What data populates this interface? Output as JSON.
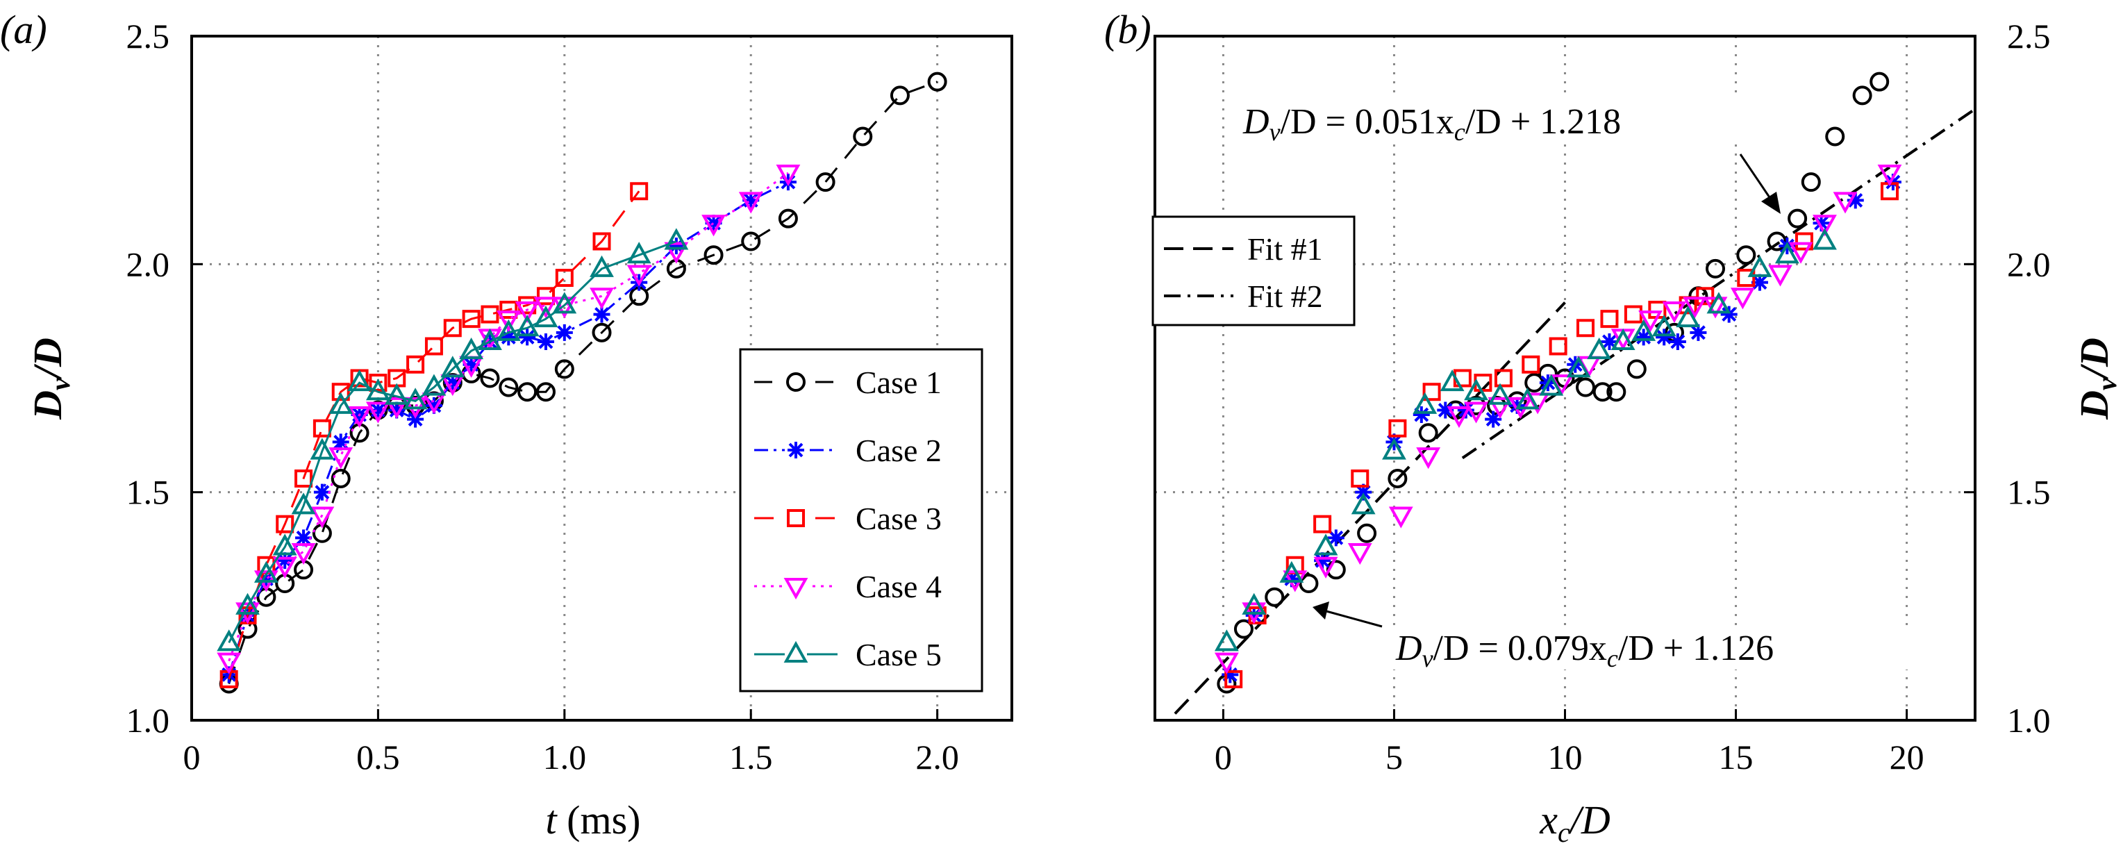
{
  "chart_data": [
    {
      "type": "line",
      "panel_label": "(a)",
      "xlabel": {
        "var": "t",
        "unit": " (ms)"
      },
      "ylabel": {
        "main": "D",
        "sub": "v",
        "rest": "/D"
      },
      "xlim": [
        0,
        2.2
      ],
      "ylim": [
        1.0,
        2.5
      ],
      "xticks": [
        0,
        0.5,
        1.0,
        1.5,
        2.0
      ],
      "xtick_labels": [
        "0",
        "0.5",
        "1.0",
        "1.5",
        "2.0"
      ],
      "yticks": [
        1.0,
        1.5,
        2.0,
        2.5
      ],
      "ytick_labels": [
        "1.0",
        "1.5",
        "2.0",
        "2.5"
      ],
      "grid": true,
      "legend_position": "lower-right",
      "series": [
        {
          "name": "Case 1",
          "color": "#000000",
          "marker": "circle",
          "dash": "26 18",
          "x": [
            0.1,
            0.15,
            0.2,
            0.25,
            0.3,
            0.35,
            0.4,
            0.45,
            0.5,
            0.55,
            0.6,
            0.65,
            0.7,
            0.75,
            0.8,
            0.85,
            0.9,
            0.95,
            1.0,
            1.1,
            1.2,
            1.3,
            1.4,
            1.5,
            1.6,
            1.7,
            1.8,
            1.9,
            2.0
          ],
          "y": [
            1.08,
            1.2,
            1.27,
            1.3,
            1.33,
            1.41,
            1.53,
            1.63,
            1.68,
            1.69,
            1.69,
            1.7,
            1.74,
            1.76,
            1.75,
            1.73,
            1.72,
            1.72,
            1.77,
            1.85,
            1.93,
            1.99,
            2.02,
            2.05,
            2.1,
            2.18,
            2.28,
            2.37,
            2.4
          ]
        },
        {
          "name": "Case 2",
          "color": "#0000ff",
          "marker": "star",
          "dash": "20 8 4 8",
          "x": [
            0.1,
            0.15,
            0.2,
            0.25,
            0.3,
            0.35,
            0.4,
            0.45,
            0.5,
            0.55,
            0.6,
            0.65,
            0.7,
            0.75,
            0.8,
            0.85,
            0.9,
            0.95,
            1.0,
            1.1,
            1.2,
            1.3,
            1.4,
            1.5,
            1.6
          ],
          "y": [
            1.1,
            1.23,
            1.31,
            1.35,
            1.4,
            1.5,
            1.61,
            1.67,
            1.68,
            1.68,
            1.66,
            1.69,
            1.74,
            1.78,
            1.83,
            1.84,
            1.84,
            1.83,
            1.85,
            1.89,
            1.96,
            2.04,
            2.09,
            2.14,
            2.18
          ]
        },
        {
          "name": "Case 3",
          "color": "#ff0000",
          "marker": "square",
          "dash": "28 16",
          "x": [
            0.1,
            0.15,
            0.2,
            0.25,
            0.3,
            0.35,
            0.4,
            0.45,
            0.5,
            0.55,
            0.6,
            0.65,
            0.7,
            0.75,
            0.8,
            0.85,
            0.9,
            0.95,
            1.0,
            1.1,
            1.2
          ],
          "y": [
            1.09,
            1.23,
            1.34,
            1.43,
            1.53,
            1.64,
            1.72,
            1.75,
            1.74,
            1.75,
            1.78,
            1.82,
            1.86,
            1.88,
            1.89,
            1.9,
            1.91,
            1.93,
            1.97,
            2.05,
            2.16
          ]
        },
        {
          "name": "Case 4",
          "color": "#ff00ff",
          "marker": "triangle-down",
          "dash": "4 8",
          "x": [
            0.1,
            0.15,
            0.2,
            0.25,
            0.3,
            0.35,
            0.4,
            0.45,
            0.5,
            0.55,
            0.6,
            0.65,
            0.7,
            0.75,
            0.8,
            0.85,
            0.9,
            0.95,
            1.0,
            1.1,
            1.2,
            1.3,
            1.4,
            1.5,
            1.6
          ],
          "y": [
            1.13,
            1.24,
            1.31,
            1.34,
            1.37,
            1.45,
            1.58,
            1.67,
            1.68,
            1.69,
            1.69,
            1.7,
            1.74,
            1.78,
            1.84,
            1.88,
            1.9,
            1.91,
            1.91,
            1.93,
            1.98,
            2.03,
            2.09,
            2.14,
            2.2
          ]
        },
        {
          "name": "Case 5",
          "color": "#008080",
          "marker": "triangle-up",
          "dash": "",
          "x": [
            0.1,
            0.15,
            0.2,
            0.25,
            0.3,
            0.35,
            0.4,
            0.45,
            0.5,
            0.55,
            0.6,
            0.65,
            0.7,
            0.75,
            0.8,
            0.85,
            0.9,
            0.95,
            1.0,
            1.1,
            1.2,
            1.3
          ],
          "y": [
            1.17,
            1.25,
            1.32,
            1.38,
            1.47,
            1.59,
            1.69,
            1.74,
            1.72,
            1.71,
            1.7,
            1.73,
            1.77,
            1.81,
            1.83,
            1.85,
            1.86,
            1.88,
            1.91,
            1.99,
            2.02,
            2.05
          ]
        }
      ]
    },
    {
      "type": "scatter",
      "panel_label": "(b)",
      "xlabel": {
        "main": "x",
        "sub": "c",
        "rest": "/D"
      },
      "ylabel": {
        "main": "D",
        "sub": "v",
        "rest": "/D"
      },
      "xlim": [
        -2,
        22
      ],
      "ylim": [
        1.0,
        2.5
      ],
      "xticks": [
        0,
        5,
        10,
        15,
        20
      ],
      "xtick_labels": [
        "0",
        "5",
        "10",
        "15",
        "20"
      ],
      "yticks": [
        1.0,
        1.5,
        2.0,
        2.5
      ],
      "ytick_labels": [
        "1.0",
        "1.5",
        "2.0",
        "2.5"
      ],
      "grid": true,
      "legend_position": "upper-left",
      "fits": [
        {
          "name": "Fit #1",
          "slope": 0.079,
          "intercept": 1.126,
          "x_range": [
            -2,
            10
          ],
          "dash": "28 14",
          "equation": {
            "a": "D",
            "b": "v",
            "c": "/D = 0.079x",
            "d": "c",
            "e": "/D + 1.126"
          }
        },
        {
          "name": "Fit #2",
          "slope": 0.051,
          "intercept": 1.218,
          "x_range": [
            7,
            22
          ],
          "dash": "24 10 4 10",
          "equation": {
            "a": "D",
            "b": "v",
            "c": "/D = 0.051x",
            "d": "c",
            "e": "/D + 1.218"
          }
        }
      ],
      "series": [
        {
          "name": "Case 1",
          "color": "#000000",
          "marker": "circle",
          "x": [
            0.1,
            0.6,
            1.5,
            2.5,
            3.3,
            4.2,
            5.1,
            6.0,
            6.8,
            7.4,
            8.0,
            8.6,
            9.1,
            9.5,
            10.0,
            10.6,
            11.1,
            11.5,
            12.1,
            13.2,
            13.9,
            14.4,
            15.3,
            16.2,
            16.8,
            17.2,
            17.9,
            18.7,
            19.2
          ],
          "y": [
            1.08,
            1.2,
            1.27,
            1.3,
            1.33,
            1.41,
            1.53,
            1.63,
            1.68,
            1.69,
            1.69,
            1.7,
            1.74,
            1.76,
            1.75,
            1.73,
            1.72,
            1.72,
            1.77,
            1.85,
            1.93,
            1.99,
            2.02,
            2.05,
            2.1,
            2.18,
            2.28,
            2.37,
            2.4
          ]
        },
        {
          "name": "Case 2",
          "color": "#0000ff",
          "marker": "star",
          "x": [
            0.2,
            0.9,
            2.0,
            2.9,
            3.3,
            4.1,
            5.0,
            5.8,
            6.5,
            7.1,
            7.9,
            8.6,
            9.5,
            10.3,
            11.3,
            12.3,
            12.9,
            13.3,
            13.9,
            14.8,
            15.7,
            16.5,
            17.5,
            18.5,
            19.6
          ],
          "y": [
            1.1,
            1.23,
            1.31,
            1.35,
            1.4,
            1.5,
            1.61,
            1.67,
            1.68,
            1.68,
            1.66,
            1.69,
            1.74,
            1.78,
            1.83,
            1.84,
            1.84,
            1.83,
            1.85,
            1.89,
            1.96,
            2.04,
            2.09,
            2.14,
            2.18
          ]
        },
        {
          "name": "Case 3",
          "color": "#ff0000",
          "marker": "square",
          "x": [
            0.3,
            1.0,
            2.1,
            2.9,
            4.0,
            5.1,
            6.1,
            7.0,
            7.6,
            8.2,
            9.0,
            9.8,
            10.6,
            11.3,
            12.0,
            12.7,
            13.6,
            14.1,
            15.3,
            17.0,
            19.5
          ],
          "y": [
            1.09,
            1.23,
            1.34,
            1.43,
            1.53,
            1.64,
            1.72,
            1.75,
            1.74,
            1.75,
            1.78,
            1.82,
            1.86,
            1.88,
            1.89,
            1.9,
            1.91,
            1.93,
            1.97,
            2.05,
            2.16
          ]
        },
        {
          "name": "Case 4",
          "color": "#ff00ff",
          "marker": "triangle-down",
          "x": [
            0.1,
            0.9,
            2.1,
            3.0,
            4.0,
            5.2,
            6.0,
            6.9,
            7.4,
            8.1,
            8.7,
            9.2,
            9.9,
            10.7,
            11.7,
            12.5,
            13.2,
            13.8,
            14.4,
            15.2,
            16.3,
            16.9,
            17.6,
            18.2,
            19.5
          ],
          "y": [
            1.13,
            1.24,
            1.31,
            1.34,
            1.37,
            1.45,
            1.58,
            1.67,
            1.68,
            1.69,
            1.69,
            1.7,
            1.74,
            1.78,
            1.84,
            1.88,
            1.9,
            1.91,
            1.91,
            1.93,
            1.98,
            2.03,
            2.09,
            2.14,
            2.2
          ]
        },
        {
          "name": "Case 5",
          "color": "#008080",
          "marker": "triangle-up",
          "x": [
            0.1,
            0.9,
            2.0,
            3.0,
            4.1,
            5.0,
            5.9,
            6.7,
            7.4,
            8.1,
            8.9,
            9.6,
            10.4,
            11.0,
            11.7,
            12.3,
            12.9,
            13.6,
            14.5,
            15.7,
            16.5,
            17.6
          ],
          "y": [
            1.17,
            1.25,
            1.32,
            1.38,
            1.47,
            1.59,
            1.69,
            1.74,
            1.72,
            1.71,
            1.7,
            1.73,
            1.77,
            1.81,
            1.83,
            1.85,
            1.86,
            1.88,
            1.91,
            1.99,
            2.02,
            2.05
          ]
        }
      ]
    }
  ]
}
